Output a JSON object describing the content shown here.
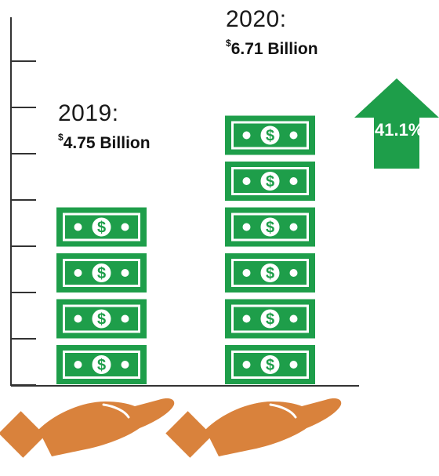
{
  "chart_data": {
    "type": "bar",
    "categories": [
      "2019",
      "2020"
    ],
    "values": [
      4.75,
      6.71
    ],
    "unit": "Billion",
    "currency_symbol": "$",
    "bar_labels": [
      {
        "year": "2019:",
        "amount": "4.75 Billion"
      },
      {
        "year": "2020:",
        "amount": "6.71 Billion"
      }
    ],
    "change_label": "41.1%",
    "colors": {
      "bill": "#1e9e4a",
      "arrow": "#1e9e4a",
      "hand": "#d9823c",
      "axis": "#333333"
    }
  }
}
